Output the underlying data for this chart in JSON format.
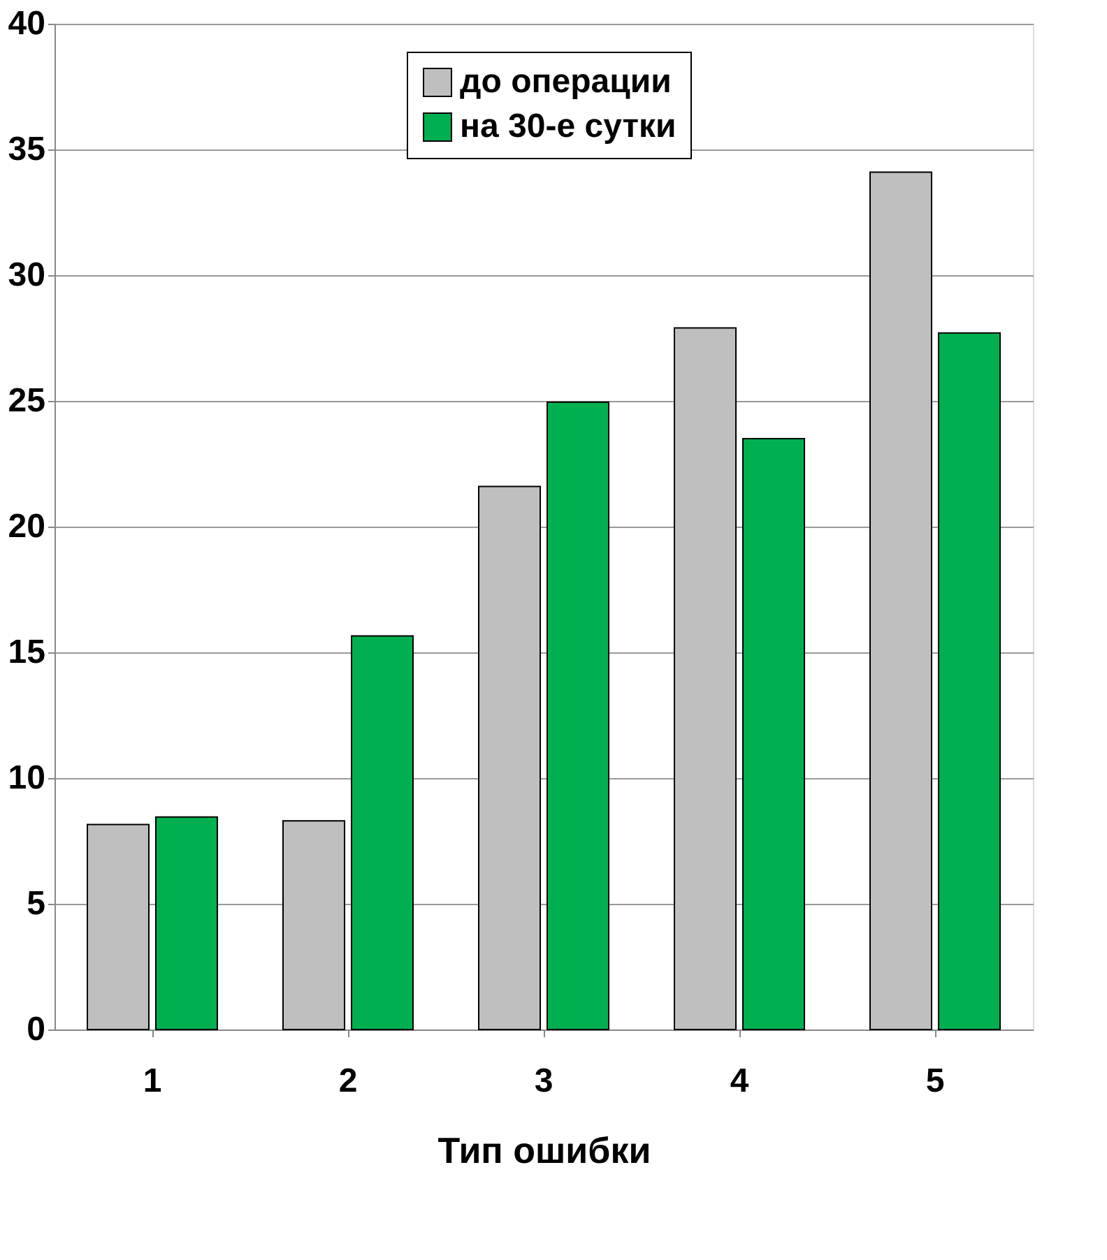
{
  "chart_data": {
    "type": "bar",
    "xlabel": "Тип ошибки",
    "categories": [
      "1",
      "2",
      "3",
      "4",
      "5"
    ],
    "series": [
      {
        "name": "до операции",
        "color": "#bfbfbf",
        "values": [
          8.15,
          8.3,
          21.6,
          27.9,
          34.1
        ]
      },
      {
        "name": "на 30-е сутки",
        "color": "#00b050",
        "values": [
          8.45,
          15.65,
          24.95,
          23.5,
          27.7
        ]
      }
    ],
    "ylim": [
      0,
      40
    ],
    "yticks": [
      0,
      5,
      10,
      15,
      20,
      25,
      30,
      35,
      40
    ],
    "grid": "y",
    "legend": "top"
  }
}
